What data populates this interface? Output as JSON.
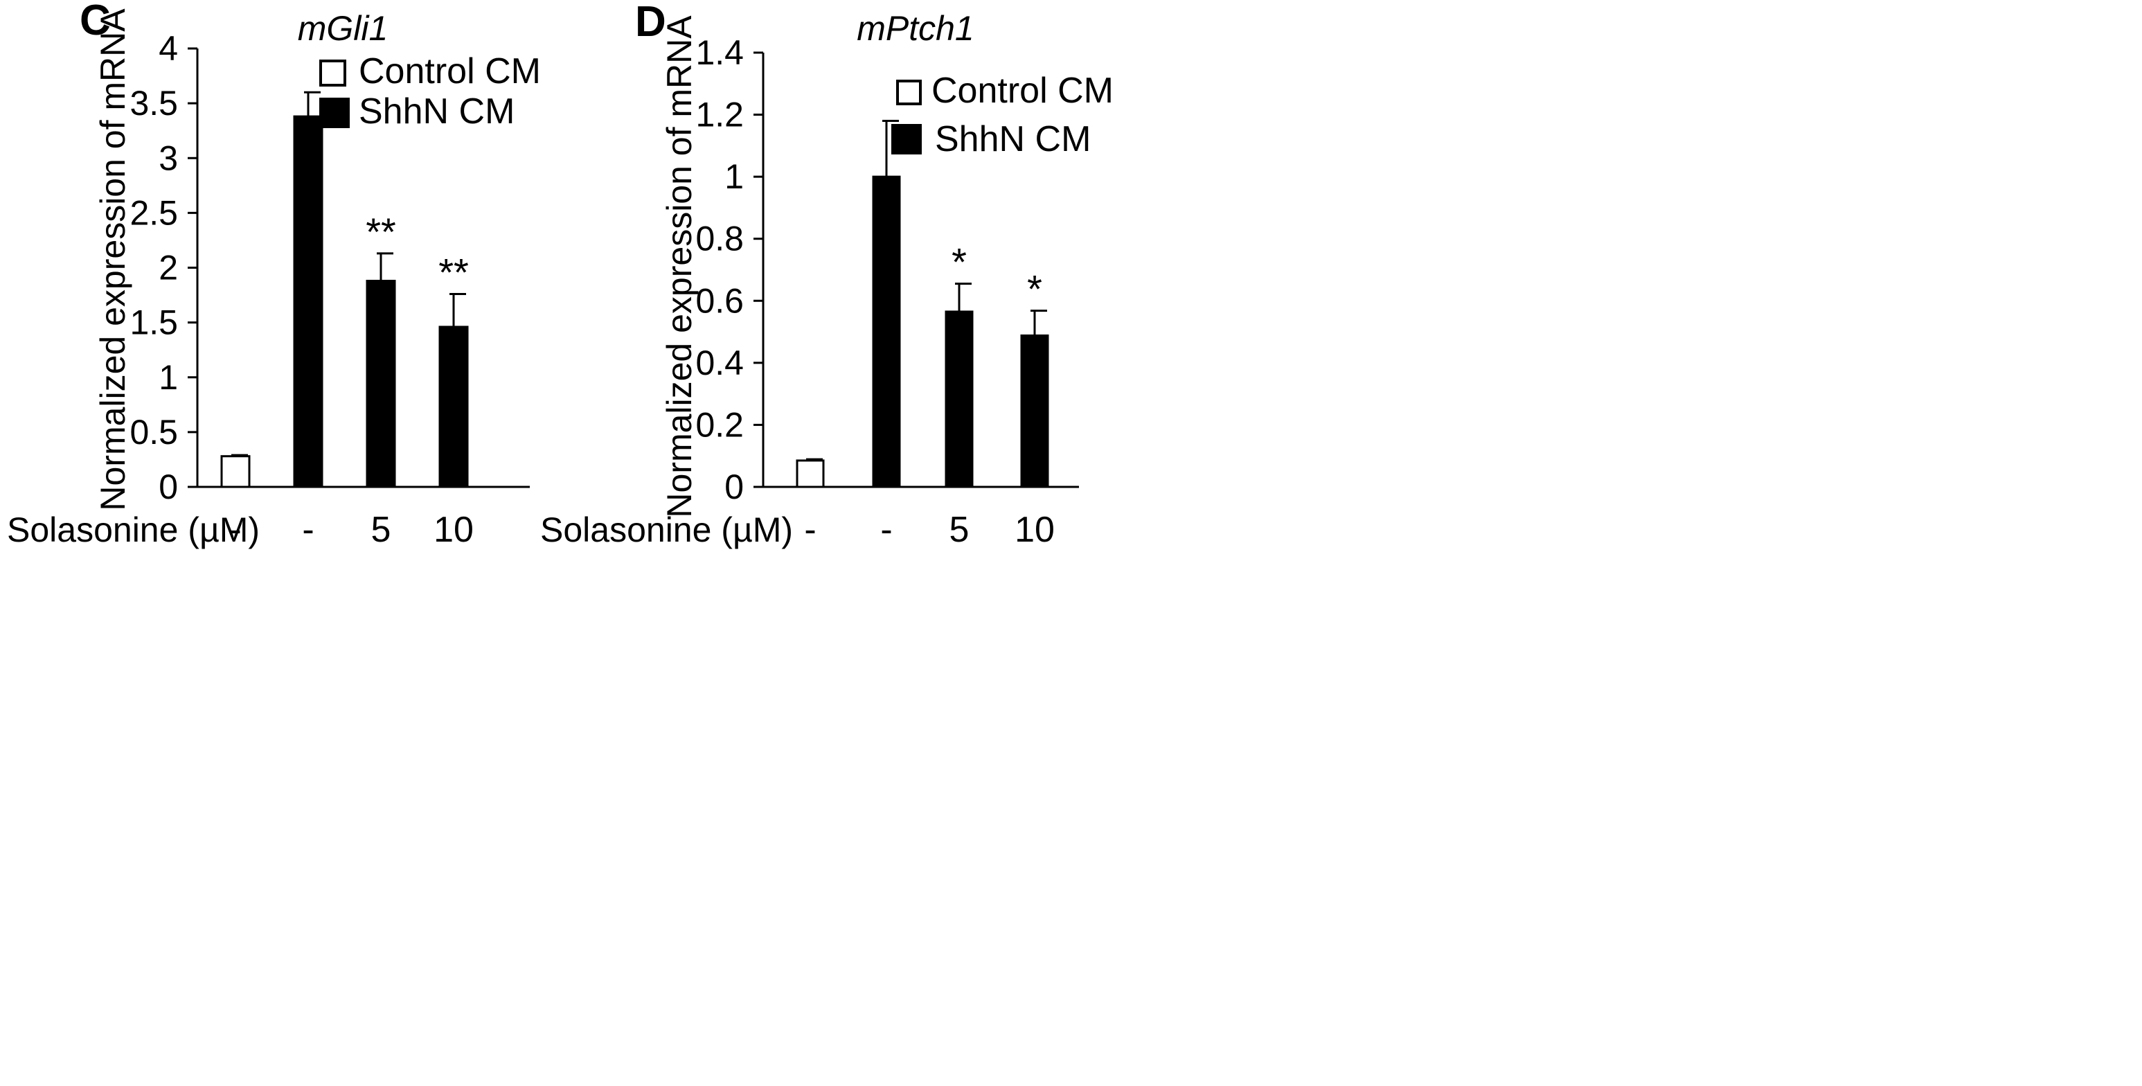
{
  "chart_data": [
    {
      "type": "bar",
      "panel": "C",
      "title": "mGli1",
      "ylabel": "Normalized expression of mRNA",
      "xlabel": "Solasonine (µM)",
      "ylim": [
        0,
        4
      ],
      "yticks": [
        0,
        0.5,
        1,
        1.5,
        2,
        2.5,
        3,
        3.5,
        4
      ],
      "categories": [
        "-",
        "-",
        "5",
        "10"
      ],
      "values": [
        0.28,
        3.38,
        1.88,
        1.46
      ],
      "errors": [
        0.01,
        0.22,
        0.25,
        0.3
      ],
      "groups": [
        "Control CM",
        "ShhN CM",
        "ShhN CM",
        "ShhN CM"
      ],
      "significance": [
        "",
        "",
        "**",
        "**"
      ],
      "legend": [
        {
          "name": "Control CM",
          "fill": "#ffffff"
        },
        {
          "name": "ShhN CM",
          "fill": "#000000"
        }
      ]
    },
    {
      "type": "bar",
      "panel": "D",
      "title": "mPtch1",
      "ylabel": "Normalized expression of mRNA",
      "xlabel": "Solasonine (µM)",
      "ylim": [
        0,
        1.4
      ],
      "yticks": [
        0,
        0.2,
        0.4,
        0.6,
        0.8,
        1,
        1.2,
        1.4
      ],
      "categories": [
        "-",
        "-",
        "5",
        "10"
      ],
      "values": [
        0.085,
        1.0,
        0.565,
        0.488
      ],
      "errors": [
        0.004,
        0.18,
        0.09,
        0.08
      ],
      "groups": [
        "Control CM",
        "ShhN CM",
        "ShhN CM",
        "ShhN CM"
      ],
      "significance": [
        "",
        "",
        "*",
        "*"
      ],
      "legend": [
        {
          "name": "Control CM",
          "fill": "#ffffff"
        },
        {
          "name": "ShhN CM",
          "fill": "#000000"
        }
      ]
    }
  ]
}
